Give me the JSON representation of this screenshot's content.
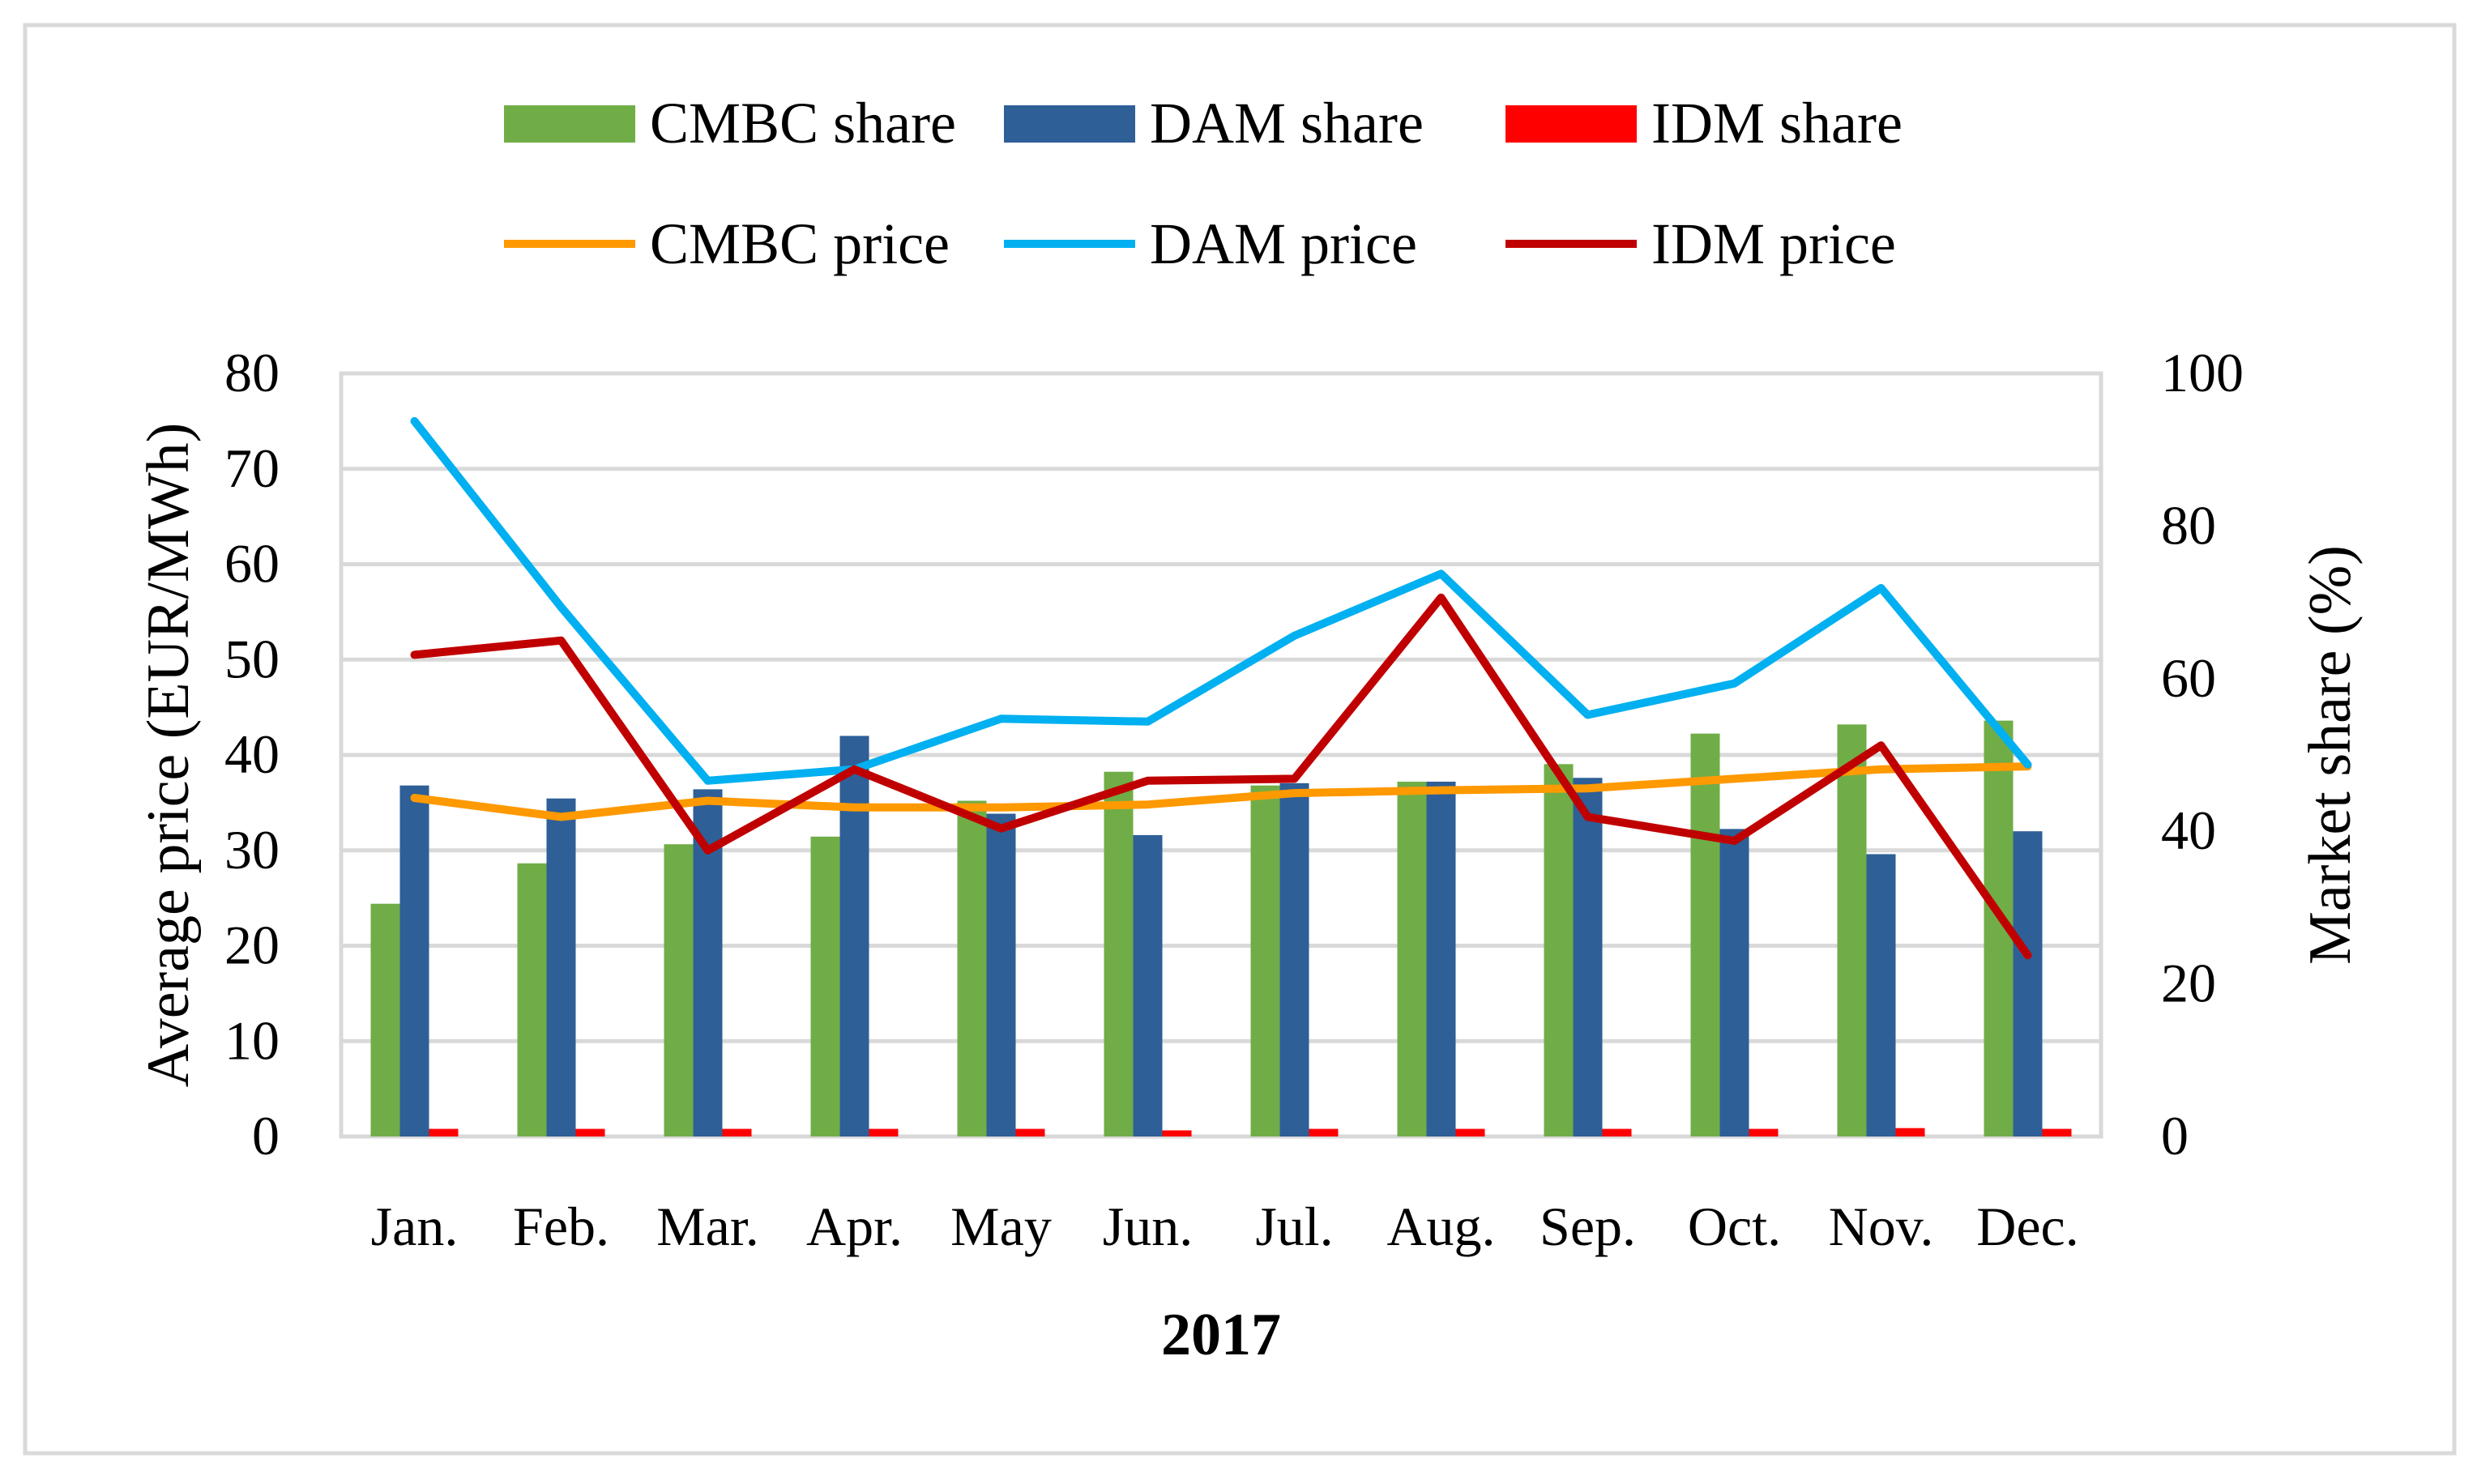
{
  "chart_data": {
    "type": "bar",
    "combo": true,
    "title": "",
    "xlabel": "2017",
    "ylabel": "Average price (EUR/MWh)",
    "y2label": "Market share (%)",
    "ylim": [
      0,
      80
    ],
    "y2lim": [
      0,
      100
    ],
    "yticks": [
      0,
      10,
      20,
      30,
      40,
      50,
      60,
      70,
      80
    ],
    "y2ticks": [
      0,
      20,
      40,
      60,
      80,
      100
    ],
    "grid": "horizontal",
    "legend_position": "top",
    "categories": [
      "Jan.",
      "Feb.",
      "Mar.",
      "Apr.",
      "May",
      "Jun.",
      "Jul.",
      "Aug.",
      "Sep.",
      "Oct.",
      "Nov.",
      "Dec."
    ],
    "bar_series": [
      {
        "name": "CMBC share",
        "axis": "right",
        "color": "#70ad47",
        "values": [
          30.5,
          35.8,
          38.3,
          39.3,
          44.0,
          47.8,
          46.0,
          46.5,
          48.8,
          52.8,
          54.0,
          54.5
        ]
      },
      {
        "name": "DAM share",
        "axis": "right",
        "color": "#2e5f97",
        "values": [
          46.0,
          44.3,
          45.5,
          52.5,
          42.3,
          39.5,
          46.3,
          46.5,
          47.0,
          40.3,
          37.0,
          40.0
        ]
      },
      {
        "name": "IDM share",
        "axis": "right",
        "color": "#ff0000",
        "values": [
          1.0,
          1.0,
          1.0,
          1.0,
          1.0,
          0.8,
          1.0,
          1.0,
          1.0,
          1.0,
          1.1,
          1.0
        ]
      }
    ],
    "line_series": [
      {
        "name": "CMBC price",
        "axis": "left",
        "color": "#ff9900",
        "values": [
          35.5,
          33.5,
          35.2,
          34.5,
          34.5,
          34.8,
          36.0,
          36.3,
          36.5,
          37.5,
          38.5,
          38.8
        ]
      },
      {
        "name": "DAM price",
        "axis": "left",
        "color": "#00b0f0",
        "values": [
          75.0,
          55.5,
          37.3,
          38.5,
          43.8,
          43.5,
          52.5,
          59.0,
          44.2,
          47.5,
          57.5,
          39.0
        ]
      },
      {
        "name": "IDM price",
        "axis": "left",
        "color": "#c00000",
        "values": [
          50.5,
          52.0,
          30.0,
          38.5,
          32.3,
          37.3,
          37.5,
          56.5,
          33.5,
          31.0,
          41.0,
          19.0
        ]
      }
    ]
  }
}
